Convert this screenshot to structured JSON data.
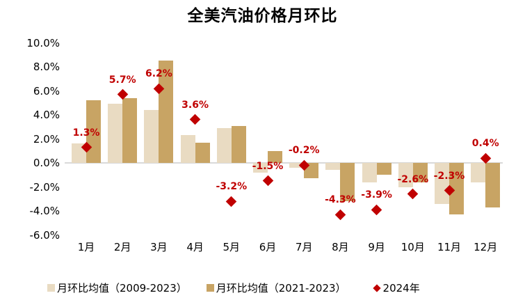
{
  "chart_data": {
    "type": "bar",
    "title": "全美汽油价格月环比",
    "categories": [
      "1月",
      "2月",
      "3月",
      "4月",
      "5月",
      "6月",
      "7月",
      "8月",
      "9月",
      "10月",
      "11月",
      "12月"
    ],
    "series": [
      {
        "name": "月环比均值（2009-2023）",
        "type": "bar",
        "color": "#E9DBC2",
        "values": [
          1.6,
          4.9,
          4.4,
          2.3,
          2.9,
          -0.8,
          -0.4,
          -0.6,
          -1.6,
          -2.0,
          -3.4,
          -1.6
        ]
      },
      {
        "name": "月环比均值（2021-2023）",
        "type": "bar",
        "color": "#C8A464",
        "values": [
          5.2,
          5.4,
          8.5,
          1.7,
          3.1,
          1.0,
          -1.3,
          -3.2,
          -1.0,
          -1.6,
          -4.3,
          -3.7
        ]
      },
      {
        "name": "2024年",
        "type": "scatter",
        "marker": "diamond",
        "color": "#C00000",
        "values": [
          1.3,
          5.7,
          6.2,
          3.6,
          -3.2,
          -1.5,
          -0.2,
          -4.3,
          -3.9,
          -2.6,
          -2.3,
          0.4
        ],
        "point_labels": [
          "1.3%",
          "5.7%",
          "6.2%",
          "3.6%",
          "-3.2%",
          "-1.5%",
          "-0.2%",
          "-4.3%",
          "-3.9%",
          "-2.6%",
          "-2.3%",
          "0.4%"
        ]
      }
    ],
    "ylim": [
      -6,
      10
    ],
    "ytick_step": 2,
    "ytick_labels": [
      "10.0%",
      "8.0%",
      "6.0%",
      "4.0%",
      "2.0%",
      "0.0%",
      "-2.0%",
      "-4.0%",
      "-6.0%"
    ],
    "grid": false,
    "zero_line_color": "#D9D9D9",
    "point_label_color": "#C00000",
    "legend_position": "bottom"
  }
}
